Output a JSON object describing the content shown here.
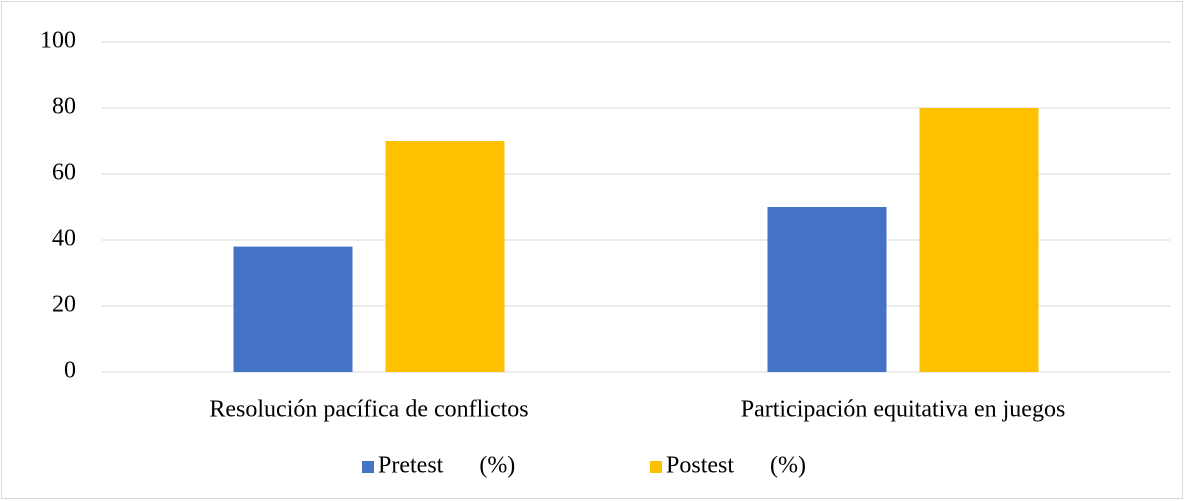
{
  "chart_data": {
    "type": "bar",
    "categories": [
      "Resolución pacífica de conflictos",
      "Participación equitativa en juegos"
    ],
    "series": [
      {
        "name": "Pretest      (%)",
        "color": "#4472c4",
        "values": [
          38,
          50
        ]
      },
      {
        "name": "Postest      (%)",
        "color": "#ffc000",
        "values": [
          70,
          80
        ]
      }
    ],
    "ylim": [
      0,
      100
    ],
    "yticks": [
      0,
      20,
      40,
      60,
      80,
      100
    ],
    "grid": true,
    "legend": "bottom"
  }
}
